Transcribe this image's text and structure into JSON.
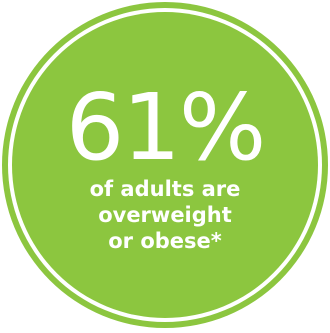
{
  "badge": {
    "stat": "61%",
    "caption_lines": [
      "of adults are",
      "overweight",
      "or obese*"
    ],
    "colors": {
      "fill": "#8cc63f",
      "text": "#ffffff",
      "background": "#ffffff"
    }
  }
}
